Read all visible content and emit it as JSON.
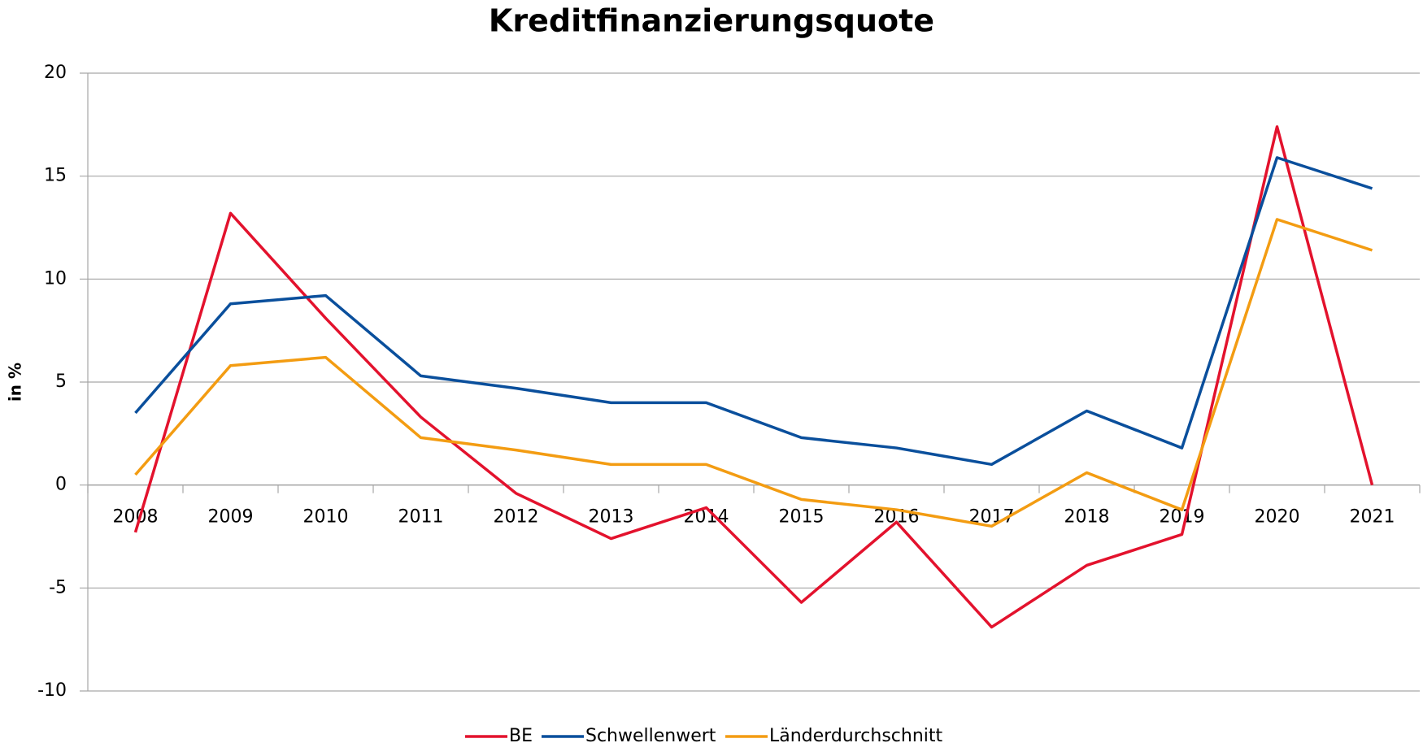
{
  "chart_data": {
    "type": "line",
    "title": "Kreditfinanzierungsquote",
    "y_label": "in %",
    "categories": [
      "2008",
      "2009",
      "2010",
      "2011",
      "2012",
      "2013",
      "2014",
      "2015",
      "2016",
      "2017",
      "2018",
      "2019",
      "2020",
      "2021"
    ],
    "series": [
      {
        "name": "BE",
        "color": "#e3122d",
        "values": [
          -2.3,
          13.2,
          8.1,
          3.3,
          -0.4,
          -2.6,
          -1.1,
          -5.7,
          -1.8,
          -6.9,
          -3.9,
          -2.4,
          17.4,
          0
        ]
      },
      {
        "name": "Schwellenwert",
        "color": "#0a4f9c",
        "values": [
          3.5,
          8.8,
          9.2,
          5.3,
          4.7,
          4.0,
          4.0,
          2.3,
          1.8,
          1.0,
          3.6,
          1.8,
          15.9,
          14.4
        ]
      },
      {
        "name": "Länderdurchschnitt",
        "color": "#f39c12",
        "values": [
          0.5,
          5.8,
          6.2,
          2.3,
          1.7,
          1.0,
          1.0,
          -0.7,
          -1.2,
          -2.0,
          0.6,
          -1.2,
          12.9,
          11.4
        ]
      }
    ],
    "ylim": [
      -10,
      20
    ],
    "yticks": [
      -10,
      -5,
      0,
      5,
      10,
      15,
      20
    ],
    "grid": true,
    "legend": "bottom"
  }
}
